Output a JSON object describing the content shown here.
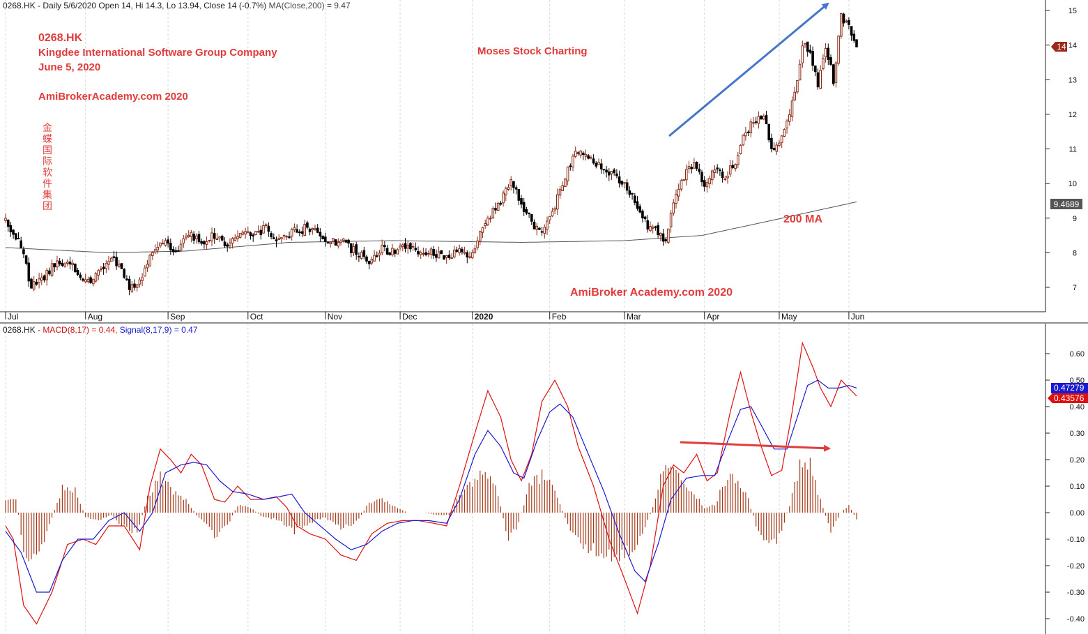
{
  "header_top": {
    "prefix": "0268.HK - Daily 5/6/2020 Open 14, Hi 14.3, Lo 13.94, Close 14 (-0.7%)",
    "ma_text": "MA(Close,200) = 9.47"
  },
  "header_bottom": {
    "prefix": "0268.HK - ",
    "macd_text": "MACD(8,17) = 0.44, ",
    "signal_text": "Signal(8,17,9) = 0.47"
  },
  "annotations": {
    "ticker": "0268.HK",
    "company": "Kingdee International Software Group Company",
    "date": "June 5, 2020",
    "site": "AmiBrokerAcademy.com  2020",
    "chinese_name": "金蝶国际软件集团",
    "center_label": "Moses Stock Charting",
    "ma_label": "200 MA",
    "bottom_label": "AmiBroker Academy.com  2020"
  },
  "price_badges": {
    "close": "14",
    "ma": "9.4689"
  },
  "macd_badges": {
    "signal": "0.47279",
    "macd": "0.43576"
  },
  "colors": {
    "up_candle": "#8b2a14",
    "down_candle": "#000000",
    "ma_line": "#555555",
    "macd_line": "#dd1111",
    "signal_line": "#1a1ad0",
    "histogram": "#a33a1a",
    "annotation_red": "#e23b3b",
    "arrow_blue": "#4477cc",
    "badge_close": "#9b2a1a",
    "badge_ma": "#555555",
    "badge_signal": "#1a1ad0",
    "badge_macd": "#dd1111"
  },
  "chart_data": [
    {
      "type": "candlestick",
      "title": "0268.HK - Daily 5/6/2020 Open 14, Hi 14.3, Lo 13.94, Close 14 (-0.7%)",
      "x_labels": [
        "Jul",
        "Aug",
        "Sep",
        "Oct",
        "Nov",
        "Dec",
        "2020",
        "Feb",
        "Mar",
        "Apr",
        "May",
        "Jun"
      ],
      "y_ticks": [
        7,
        8,
        9,
        10,
        11,
        12,
        13,
        14,
        15
      ],
      "ylim": [
        6.3,
        15.3
      ],
      "close_anchors": [
        [
          0,
          8.9
        ],
        [
          6,
          8.2
        ],
        [
          10,
          7.0
        ],
        [
          14,
          7.2
        ],
        [
          20,
          7.8
        ],
        [
          26,
          7.6
        ],
        [
          31,
          7.1
        ],
        [
          36,
          7.5
        ],
        [
          41,
          7.8
        ],
        [
          45,
          7.6
        ],
        [
          48,
          7.0
        ],
        [
          52,
          7.1
        ],
        [
          56,
          7.9
        ],
        [
          61,
          8.3
        ],
        [
          66,
          8.0
        ],
        [
          71,
          8.6
        ],
        [
          76,
          8.3
        ],
        [
          81,
          8.5
        ],
        [
          86,
          8.2
        ],
        [
          91,
          8.6
        ],
        [
          96,
          8.5
        ],
        [
          101,
          8.7
        ],
        [
          106,
          8.4
        ],
        [
          111,
          8.6
        ],
        [
          116,
          8.7
        ],
        [
          121,
          8.6
        ],
        [
          126,
          8.3
        ],
        [
          131,
          8.3
        ],
        [
          136,
          8.0
        ],
        [
          141,
          7.8
        ],
        [
          146,
          8.1
        ],
        [
          151,
          8.0
        ],
        [
          156,
          8.2
        ],
        [
          161,
          8.0
        ],
        [
          166,
          8.0
        ],
        [
          171,
          7.9
        ],
        [
          176,
          8.0
        ],
        [
          181,
          7.9
        ],
        [
          186,
          8.9
        ],
        [
          191,
          9.4
        ],
        [
          196,
          10.0
        ],
        [
          201,
          9.3
        ],
        [
          205,
          8.8
        ],
        [
          208,
          8.5
        ],
        [
          212,
          9.2
        ],
        [
          216,
          10.0
        ],
        [
          220,
          10.8
        ],
        [
          223,
          11.0
        ],
        [
          226,
          10.8
        ],
        [
          231,
          10.5
        ],
        [
          236,
          10.2
        ],
        [
          241,
          9.9
        ],
        [
          245,
          9.4
        ],
        [
          249,
          8.8
        ],
        [
          253,
          8.6
        ],
        [
          256,
          8.3
        ],
        [
          259,
          9.4
        ],
        [
          263,
          10.2
        ],
        [
          267,
          10.6
        ],
        [
          271,
          10.0
        ],
        [
          275,
          10.4
        ],
        [
          279,
          10.2
        ],
        [
          283,
          10.6
        ],
        [
          287,
          11.5
        ],
        [
          291,
          11.9
        ],
        [
          294,
          12.0
        ],
        [
          297,
          11.0
        ],
        [
          300,
          11.2
        ],
        [
          303,
          11.8
        ],
        [
          306,
          12.6
        ],
        [
          309,
          14.0
        ],
        [
          312,
          13.8
        ],
        [
          315,
          12.8
        ],
        [
          318,
          14.0
        ],
        [
          321,
          13.0
        ],
        [
          324,
          14.8
        ],
        [
          327,
          14.6
        ],
        [
          330,
          14.0
        ]
      ],
      "ma200_anchors": [
        [
          0,
          8.15
        ],
        [
          40,
          8.0
        ],
        [
          70,
          8.05
        ],
        [
          110,
          8.3
        ],
        [
          150,
          8.35
        ],
        [
          200,
          8.3
        ],
        [
          240,
          8.35
        ],
        [
          270,
          8.5
        ],
        [
          295,
          8.9
        ],
        [
          330,
          9.47
        ]
      ],
      "last_close": 14,
      "ma200_last": 9.4689
    },
    {
      "type": "line",
      "title": "0268.HK - MACD(8,17) = 0.44, Signal(8,17,9) = 0.47",
      "y_ticks": [
        -0.4,
        -0.3,
        -0.2,
        -0.1,
        0.0,
        0.1,
        0.2,
        0.3,
        0.4,
        0.5,
        0.6
      ],
      "ylim": [
        -0.43,
        0.68
      ],
      "series": [
        {
          "name": "MACD(8,17)",
          "anchors": [
            [
              0,
              -0.05
            ],
            [
              3,
              -0.1
            ],
            [
              7,
              -0.35
            ],
            [
              12,
              -0.42
            ],
            [
              18,
              -0.3
            ],
            [
              24,
              -0.12
            ],
            [
              30,
              -0.1
            ],
            [
              35,
              -0.12
            ],
            [
              40,
              -0.05
            ],
            [
              46,
              -0.05
            ],
            [
              52,
              -0.14
            ],
            [
              56,
              0.1
            ],
            [
              60,
              0.24
            ],
            [
              64,
              0.2
            ],
            [
              68,
              0.15
            ],
            [
              72,
              0.22
            ],
            [
              76,
              0.18
            ],
            [
              81,
              0.05
            ],
            [
              85,
              0.04
            ],
            [
              90,
              0.1
            ],
            [
              95,
              0.05
            ],
            [
              100,
              0.05
            ],
            [
              105,
              0.06
            ],
            [
              109,
              0.02
            ],
            [
              113,
              -0.05
            ],
            [
              118,
              -0.08
            ],
            [
              124,
              -0.1
            ],
            [
              130,
              -0.16
            ],
            [
              136,
              -0.18
            ],
            [
              142,
              -0.08
            ],
            [
              148,
              -0.04
            ],
            [
              154,
              -0.03
            ],
            [
              160,
              -0.03
            ],
            [
              166,
              -0.04
            ],
            [
              171,
              -0.05
            ],
            [
              176,
              0.1
            ],
            [
              182,
              0.3
            ],
            [
              187,
              0.46
            ],
            [
              192,
              0.36
            ],
            [
              196,
              0.2
            ],
            [
              200,
              0.12
            ],
            [
              204,
              0.22
            ],
            [
              208,
              0.42
            ],
            [
              213,
              0.5
            ],
            [
              218,
              0.4
            ],
            [
              222,
              0.25
            ],
            [
              228,
              0.1
            ],
            [
              234,
              -0.1
            ],
            [
              240,
              -0.25
            ],
            [
              245,
              -0.38
            ],
            [
              250,
              -0.2
            ],
            [
              255,
              0.1
            ],
            [
              259,
              0.18
            ],
            [
              263,
              0.15
            ],
            [
              268,
              0.22
            ],
            [
              272,
              0.12
            ],
            [
              276,
              0.15
            ],
            [
              281,
              0.38
            ],
            [
              285,
              0.53
            ],
            [
              289,
              0.38
            ],
            [
              293,
              0.25
            ],
            [
              297,
              0.14
            ],
            [
              301,
              0.16
            ],
            [
              305,
              0.38
            ],
            [
              309,
              0.64
            ],
            [
              313,
              0.55
            ],
            [
              316,
              0.47
            ],
            [
              320,
              0.4
            ],
            [
              324,
              0.5
            ],
            [
              327,
              0.47
            ],
            [
              330,
              0.44
            ]
          ]
        },
        {
          "name": "Signal(8,17,9)",
          "anchors": [
            [
              0,
              -0.07
            ],
            [
              6,
              -0.15
            ],
            [
              12,
              -0.3
            ],
            [
              17,
              -0.3
            ],
            [
              22,
              -0.18
            ],
            [
              28,
              -0.1
            ],
            [
              34,
              -0.1
            ],
            [
              40,
              -0.03
            ],
            [
              46,
              0.0
            ],
            [
              52,
              -0.07
            ],
            [
              57,
              0.0
            ],
            [
              62,
              0.15
            ],
            [
              68,
              0.18
            ],
            [
              73,
              0.19
            ],
            [
              78,
              0.18
            ],
            [
              83,
              0.12
            ],
            [
              88,
              0.08
            ],
            [
              94,
              0.07
            ],
            [
              100,
              0.05
            ],
            [
              106,
              0.06
            ],
            [
              111,
              0.07
            ],
            [
              116,
              0.0
            ],
            [
              122,
              -0.05
            ],
            [
              128,
              -0.1
            ],
            [
              134,
              -0.14
            ],
            [
              140,
              -0.12
            ],
            [
              146,
              -0.07
            ],
            [
              152,
              -0.04
            ],
            [
              158,
              -0.03
            ],
            [
              164,
              -0.03
            ],
            [
              171,
              -0.04
            ],
            [
              176,
              0.05
            ],
            [
              182,
              0.22
            ],
            [
              187,
              0.31
            ],
            [
              192,
              0.25
            ],
            [
              197,
              0.15
            ],
            [
              201,
              0.13
            ],
            [
              206,
              0.27
            ],
            [
              211,
              0.38
            ],
            [
              215,
              0.41
            ],
            [
              220,
              0.36
            ],
            [
              226,
              0.22
            ],
            [
              232,
              0.08
            ],
            [
              238,
              -0.08
            ],
            [
              244,
              -0.22
            ],
            [
              248,
              -0.26
            ],
            [
              253,
              -0.12
            ],
            [
              258,
              0.05
            ],
            [
              264,
              0.13
            ],
            [
              270,
              0.14
            ],
            [
              275,
              0.14
            ],
            [
              280,
              0.27
            ],
            [
              285,
              0.39
            ],
            [
              289,
              0.4
            ],
            [
              293,
              0.33
            ],
            [
              298,
              0.24
            ],
            [
              303,
              0.24
            ],
            [
              307,
              0.36
            ],
            [
              311,
              0.48
            ],
            [
              315,
              0.5
            ],
            [
              319,
              0.47
            ],
            [
              323,
              0.47
            ],
            [
              327,
              0.48
            ],
            [
              330,
              0.47
            ]
          ]
        }
      ],
      "histogram_anchors": [
        [
          0,
          0.05
        ],
        [
          4,
          0.06
        ],
        [
          8,
          -0.22
        ],
        [
          12,
          -0.2
        ],
        [
          17,
          -0.05
        ],
        [
          22,
          0.1
        ],
        [
          27,
          0.1
        ],
        [
          31,
          -0.02
        ],
        [
          36,
          -0.03
        ],
        [
          41,
          -0.01
        ],
        [
          46,
          -0.06
        ],
        [
          51,
          -0.08
        ],
        [
          55,
          0.06
        ],
        [
          60,
          0.15
        ],
        [
          65,
          0.08
        ],
        [
          70,
          0.05
        ],
        [
          74,
          -0.01
        ],
        [
          78,
          -0.05
        ],
        [
          82,
          -0.1
        ],
        [
          86,
          -0.05
        ],
        [
          90,
          0.03
        ],
        [
          95,
          0.02
        ],
        [
          100,
          -0.02
        ],
        [
          106,
          -0.03
        ],
        [
          112,
          -0.08
        ],
        [
          118,
          -0.04
        ],
        [
          124,
          -0.02
        ],
        [
          130,
          -0.06
        ],
        [
          136,
          -0.04
        ],
        [
          141,
          0.04
        ],
        [
          146,
          0.05
        ],
        [
          150,
          0.03
        ],
        [
          156,
          0.0
        ],
        [
          162,
          0.0
        ],
        [
          168,
          -0.01
        ],
        [
          172,
          -0.01
        ],
        [
          176,
          0.07
        ],
        [
          181,
          0.13
        ],
        [
          186,
          0.17
        ],
        [
          191,
          0.08
        ],
        [
          195,
          -0.12
        ],
        [
          199,
          -0.04
        ],
        [
          203,
          0.11
        ],
        [
          208,
          0.15
        ],
        [
          213,
          0.09
        ],
        [
          217,
          -0.02
        ],
        [
          221,
          -0.11
        ],
        [
          226,
          -0.14
        ],
        [
          232,
          -0.17
        ],
        [
          238,
          -0.17
        ],
        [
          243,
          -0.15
        ],
        [
          247,
          -0.08
        ],
        [
          251,
          0.02
        ],
        [
          255,
          0.2
        ],
        [
          259,
          0.18
        ],
        [
          263,
          0.1
        ],
        [
          267,
          0.08
        ],
        [
          271,
          0.02
        ],
        [
          275,
          0.03
        ],
        [
          279,
          0.13
        ],
        [
          284,
          0.14
        ],
        [
          288,
          0.05
        ],
        [
          292,
          -0.08
        ],
        [
          296,
          -0.14
        ],
        [
          300,
          -0.1
        ],
        [
          304,
          0.03
        ],
        [
          308,
          0.2
        ],
        [
          312,
          0.19
        ],
        [
          316,
          0.05
        ],
        [
          320,
          -0.08
        ],
        [
          324,
          0.0
        ],
        [
          327,
          0.03
        ],
        [
          330,
          -0.03
        ]
      ]
    }
  ]
}
